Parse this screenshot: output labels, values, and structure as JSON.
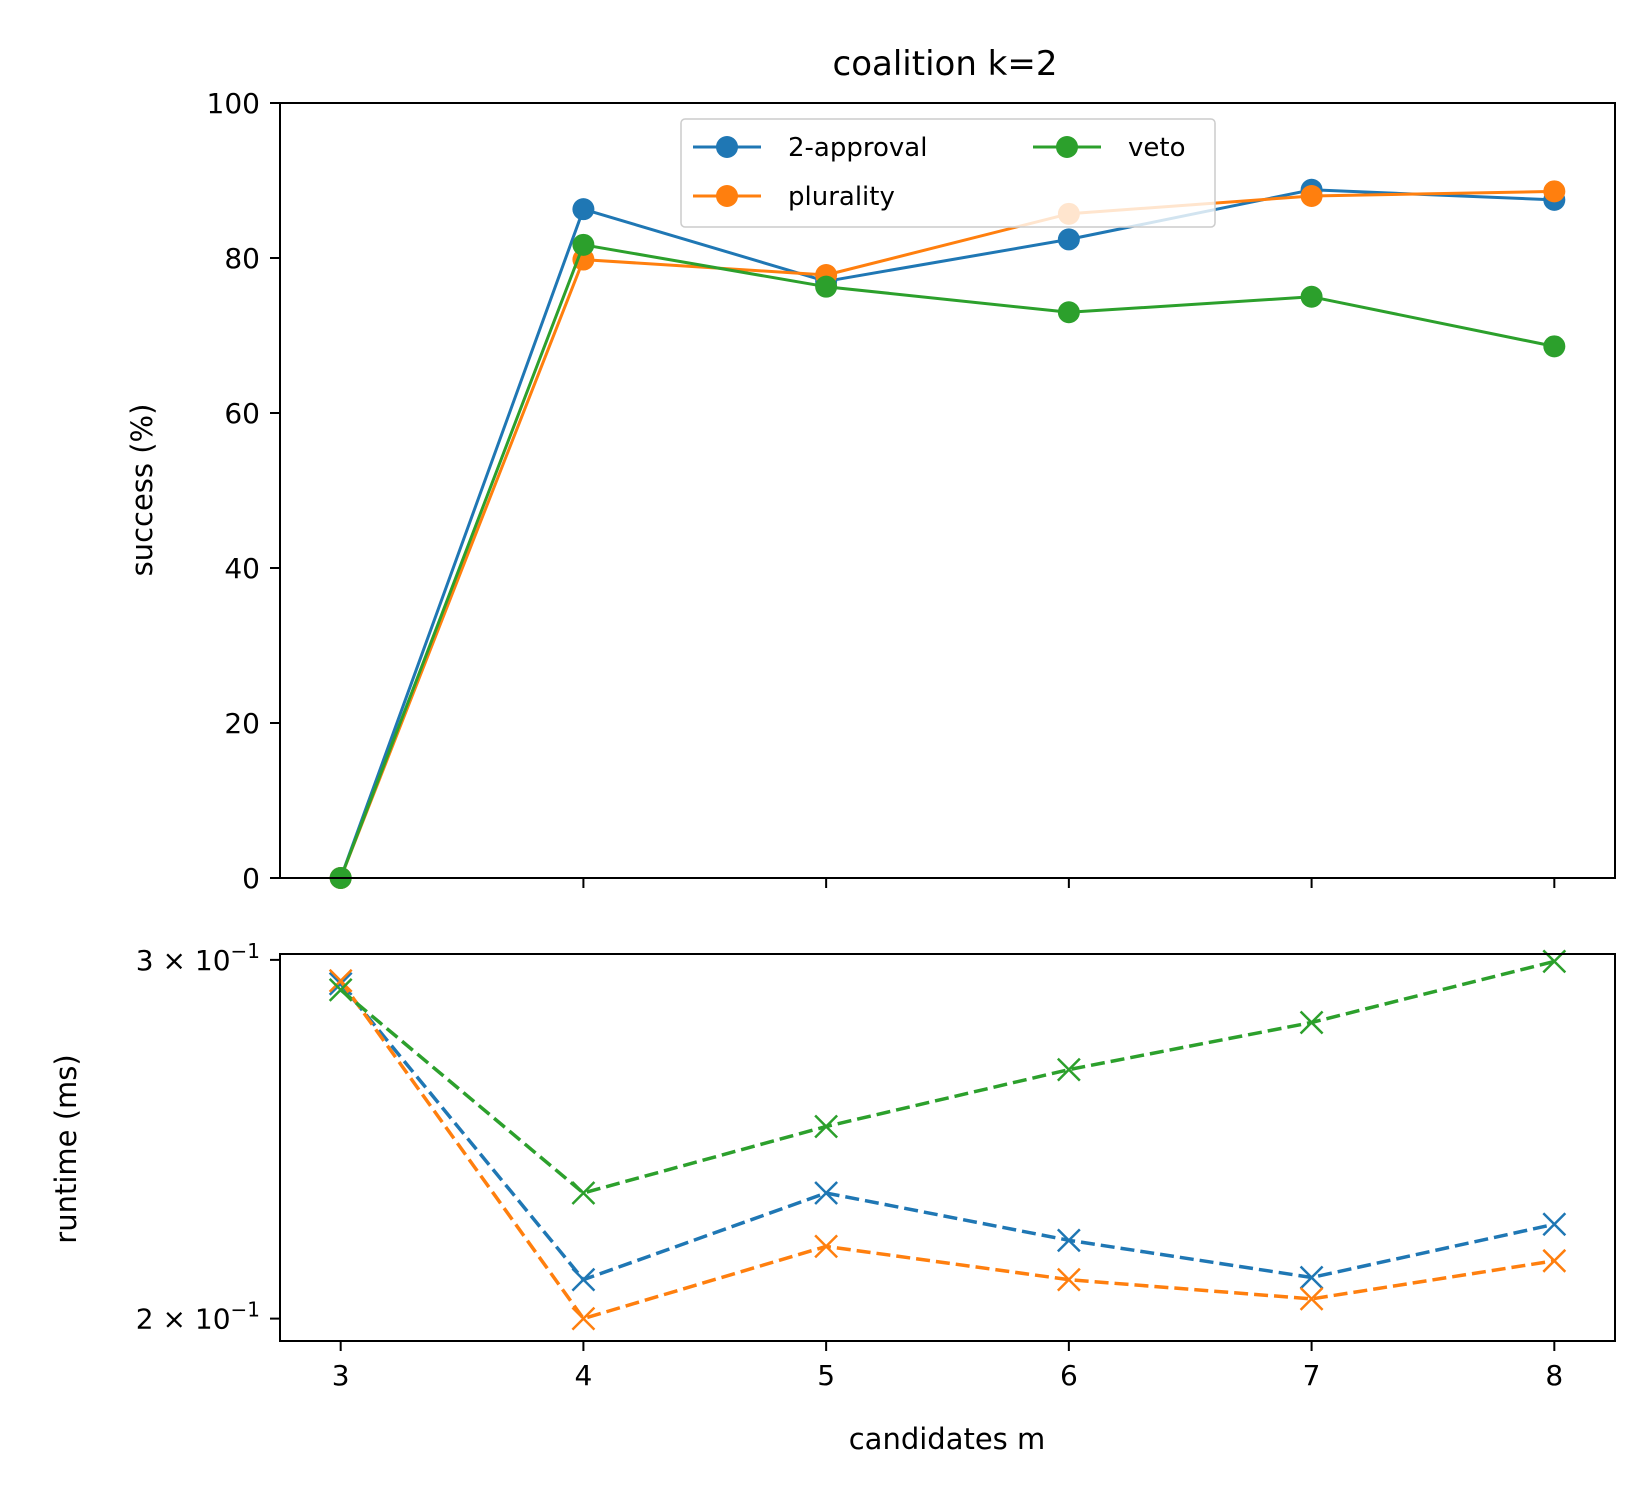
{
  "chart_data": [
    {
      "type": "line",
      "title": "coalition k=2",
      "xlabel": "",
      "ylabel": "success (%)",
      "x": [
        3,
        4,
        5,
        6,
        7,
        8
      ],
      "xlim": [
        2.75,
        8.25
      ],
      "ylim": [
        0,
        100
      ],
      "yticks": [
        0,
        20,
        40,
        60,
        80,
        100
      ],
      "yscale": "linear",
      "grid": false,
      "legend": {
        "placement": "top-center",
        "columns": 2
      },
      "marker": "circle",
      "linestyle": "solid",
      "series": [
        {
          "name": "2-approval",
          "color": "#1f77b4",
          "values": [
            0,
            86.3,
            77.0,
            82.4,
            88.8,
            87.5
          ]
        },
        {
          "name": "plurality",
          "color": "#ff7f0e",
          "values": [
            0,
            79.8,
            77.8,
            85.7,
            88.0,
            88.6
          ]
        },
        {
          "name": "veto",
          "color": "#2ca02c",
          "values": [
            0,
            81.7,
            76.3,
            73.0,
            75.0,
            68.6
          ]
        }
      ]
    },
    {
      "type": "line",
      "title": "",
      "xlabel": "candidates m",
      "ylabel": "runtime (ms)",
      "x": [
        3,
        4,
        5,
        6,
        7,
        8
      ],
      "xticks": [
        "3",
        "4",
        "5",
        "6",
        "7",
        "8"
      ],
      "xlim": [
        2.75,
        8.25
      ],
      "ylim": [
        0.195,
        0.302
      ],
      "yscale": "log",
      "yticks": [
        {
          "value": 0.3,
          "base": "3",
          "exp": "−1"
        },
        {
          "value": 0.2,
          "base": "2",
          "exp": "−1"
        }
      ],
      "tick_times": "×",
      "tick_ten": "10",
      "grid": false,
      "marker": "x",
      "linestyle": "dashed",
      "series": [
        {
          "color": "#1f77b4",
          "values": [
            0.292,
            0.209,
            0.2305,
            0.2185,
            0.2095,
            0.2225
          ]
        },
        {
          "color": "#ff7f0e",
          "values": [
            0.293,
            0.2,
            0.217,
            0.209,
            0.2045,
            0.2135
          ]
        },
        {
          "color": "#2ca02c",
          "values": [
            0.29,
            0.2305,
            0.2485,
            0.265,
            0.2795,
            0.2995
          ]
        }
      ]
    }
  ]
}
